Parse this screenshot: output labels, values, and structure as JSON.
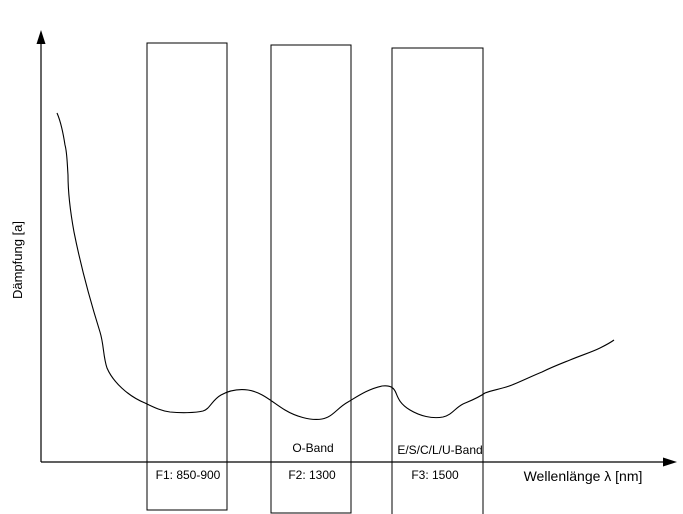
{
  "diagram": {
    "y_axis_label": "Dämpfung [a]",
    "x_axis_label": "Wellenlänge λ [nm]",
    "windows": [
      {
        "id": "f1",
        "label": "F1: 850-900",
        "band": ""
      },
      {
        "id": "f2",
        "label": "F2: 1300",
        "band": "O-Band"
      },
      {
        "id": "f3",
        "label": "F3: 1500",
        "band": "E/S/C/L/U-Band"
      }
    ]
  },
  "colors": {
    "line": "#000000",
    "background": "#ffffff"
  }
}
